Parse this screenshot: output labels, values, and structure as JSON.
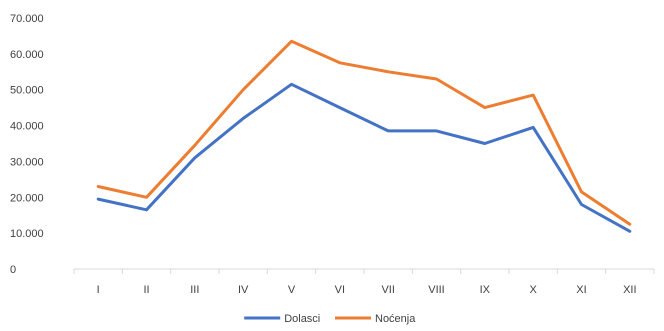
{
  "chart_data": {
    "type": "line",
    "categories": [
      "I",
      "II",
      "III",
      "IV",
      "V",
      "VI",
      "VII",
      "VIII",
      "IX",
      "X",
      "XI",
      "XII"
    ],
    "y_ticks": [
      "0",
      "10.000",
      "20.000",
      "30.000",
      "40.000",
      "50.000",
      "60.000",
      "70.000"
    ],
    "ylim": [
      0,
      70000
    ],
    "grid": false,
    "legend_position": "bottom",
    "series": [
      {
        "name": "Dolasci",
        "color": "#4472c4",
        "values": [
          19500,
          16500,
          31000,
          42000,
          51500,
          45000,
          38500,
          38500,
          35000,
          39500,
          18000,
          10500
        ]
      },
      {
        "name": "Noćenja",
        "color": "#ed7d31",
        "values": [
          23000,
          20000,
          34500,
          50000,
          63500,
          57500,
          55000,
          53000,
          45000,
          48500,
          21500,
          12500
        ]
      }
    ]
  }
}
